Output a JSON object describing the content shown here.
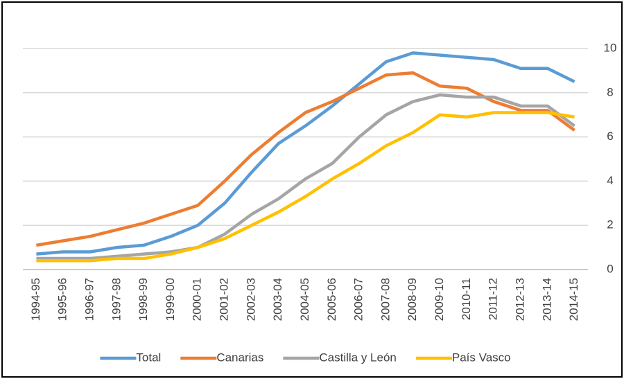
{
  "chart_data": {
    "type": "line",
    "categories": [
      "1994-95",
      "1995-96",
      "1996-97",
      "1997-98",
      "1998-99",
      "1999-00",
      "2000-01",
      "2001-02",
      "2002-03",
      "2003-04",
      "2004-05",
      "2005-06",
      "2006-07",
      "2007-08",
      "2008-09",
      "2009-10",
      "2010-11",
      "2011-12",
      "2012-13",
      "2013-14",
      "2014-15"
    ],
    "series": [
      {
        "name": "Total",
        "color": "#5b9bd5",
        "values": [
          0.7,
          0.8,
          0.8,
          1.0,
          1.1,
          1.5,
          2.0,
          3.0,
          4.4,
          5.7,
          6.5,
          7.4,
          8.4,
          9.4,
          9.8,
          9.7,
          9.6,
          9.5,
          9.1,
          9.1,
          8.5
        ]
      },
      {
        "name": "Canarias",
        "color": "#ed7d31",
        "values": [
          1.1,
          1.3,
          1.5,
          1.8,
          2.1,
          2.5,
          2.9,
          4.0,
          5.2,
          6.2,
          7.1,
          7.6,
          8.2,
          8.8,
          8.9,
          8.3,
          8.2,
          7.6,
          7.2,
          7.2,
          6.3
        ]
      },
      {
        "name": "Castilla y León",
        "color": "#a5a5a5",
        "values": [
          0.5,
          0.5,
          0.5,
          0.6,
          0.7,
          0.8,
          1.0,
          1.6,
          2.5,
          3.2,
          4.1,
          4.8,
          6.0,
          7.0,
          7.6,
          7.9,
          7.8,
          7.8,
          7.4,
          7.4,
          6.5
        ]
      },
      {
        "name": "País Vasco",
        "color": "#ffc000",
        "values": [
          0.4,
          0.4,
          0.4,
          0.5,
          0.5,
          0.7,
          1.0,
          1.4,
          2.0,
          2.6,
          3.3,
          4.1,
          4.8,
          5.6,
          6.2,
          7.0,
          6.9,
          7.1,
          7.1,
          7.1,
          6.9
        ]
      }
    ],
    "ylim": [
      0,
      10
    ],
    "yticks": [
      0,
      2,
      4,
      6,
      8,
      10
    ],
    "y_axis_side": "right",
    "grid": true,
    "legend": "bottom"
  }
}
